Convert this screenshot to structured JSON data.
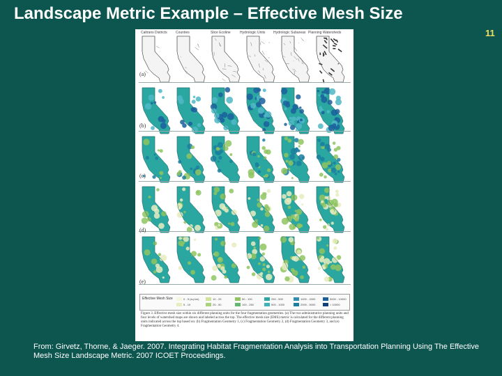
{
  "title": "Landscape Metric Example – Effective Mesh Size",
  "page_number": "11",
  "figure": {
    "column_headings": [
      "Caltrans Districts",
      "Counties",
      "Slice Ecoline",
      "Hydrologic Units",
      "Hydrologic Subareas",
      "Planning Watersheds"
    ],
    "row_labels": [
      "(a)",
      "(b)",
      "(c)",
      "(d)",
      "(e)"
    ],
    "legend": {
      "title": "Effective Mesh Size",
      "entries": [
        "0 - 5 (sq km)",
        "5 - 10",
        "10 - 25",
        "25 - 50",
        "50 - 100",
        "100 - 250",
        "250 - 500",
        "500 - 1000",
        "1000 - 2000",
        "2000 - 5000",
        "5000 - 10000",
        "> 10000"
      ]
    },
    "caption": "Figure 3. Effective mesh size within six different planning units for the four fragmentation geometries. (a) The two administrative planning units and four levels of watershed maps are shown and labeled across the top. The effective mesh size (EMS) metric is calculated for the different planning units indicated across the top based on: (b) Fragmentation Geometry 1, (c) Fragmentation Geometry 2, (d) Fragmentation Geometry 3, and (e) Fragmentation Geometry 4."
  },
  "citation": "From: Girvetz, Thorne, & Jaeger. 2007. Integrating Habitat Fragmentation Analysis into Transportation Planning Using The Effective Mesh Size Landscape Metric. 2007 ICOET Proceedings.",
  "colors": {
    "background": "#0d5650",
    "page_number": "#f0e060",
    "map_teal": "#2aa7a0",
    "map_dark": "#1a5f9e",
    "map_green": "#8fc460",
    "map_pale": "#e8ecc0"
  }
}
